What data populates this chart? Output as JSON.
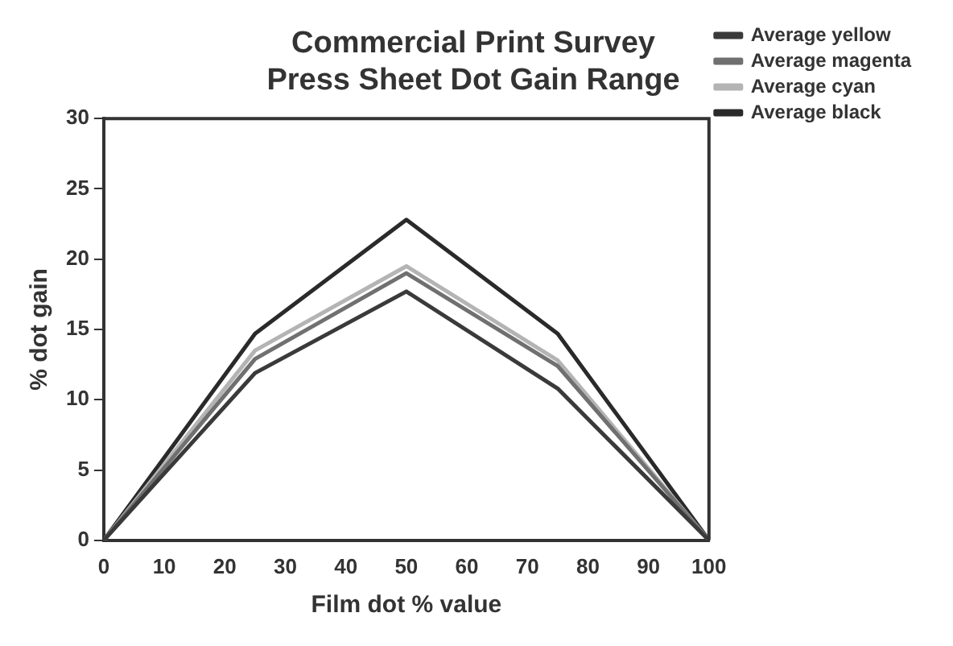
{
  "chart_data": {
    "type": "line",
    "title": "Commercial Print Survey\nPress Sheet Dot Gain Range",
    "xlabel": "Film dot % value",
    "ylabel": "% dot gain",
    "x": [
      0,
      25,
      50,
      75,
      100
    ],
    "series": [
      {
        "name": "Average yellow",
        "color": "#3a3a3a",
        "values": [
          0,
          11.9,
          17.7,
          10.8,
          0
        ]
      },
      {
        "name": "Average magenta",
        "color": "#707070",
        "values": [
          0,
          12.9,
          19,
          12.4,
          0
        ]
      },
      {
        "name": "Average cyan",
        "color": "#b4b4b4",
        "values": [
          0,
          13.5,
          19.5,
          12.8,
          0
        ]
      },
      {
        "name": "Average black",
        "color": "#2a2a2a",
        "values": [
          0,
          14.7,
          22.8,
          14.7,
          0
        ]
      }
    ],
    "xlim": [
      0,
      100
    ],
    "xticks": [
      0,
      10,
      20,
      30,
      40,
      50,
      60,
      70,
      80,
      90,
      100
    ],
    "ylim": [
      0,
      30
    ],
    "yticks": [
      0,
      5,
      10,
      15,
      20,
      25,
      30
    ],
    "grid": false,
    "legend": "right",
    "marker": "none",
    "line_style": "solid"
  }
}
